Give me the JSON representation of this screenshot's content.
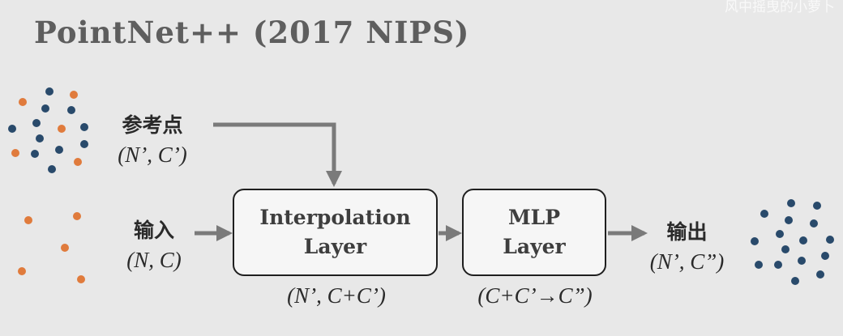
{
  "title": "PointNet++ (2017 NIPS)",
  "watermark": "风中摇曳的小萝卜",
  "colors": {
    "background": "#e8e8e8",
    "blue_point": "#294a6b",
    "orange_point": "#e07b3c",
    "arrow": "#7a7a7a",
    "box_border": "#1f1f1f"
  },
  "reference": {
    "label": "参考点",
    "shape": "(N’, C’)"
  },
  "input": {
    "label": "输入",
    "shape": "(N, C)"
  },
  "output": {
    "label": "输出",
    "shape": "(N’, C”)"
  },
  "interpolation_layer": {
    "line1": "Interpolation",
    "line2": "Layer",
    "shape": "(N’, C+C’)"
  },
  "mlp_layer": {
    "line1": "MLP",
    "line2": "Layer",
    "shape": "(C+C’→C”)"
  }
}
